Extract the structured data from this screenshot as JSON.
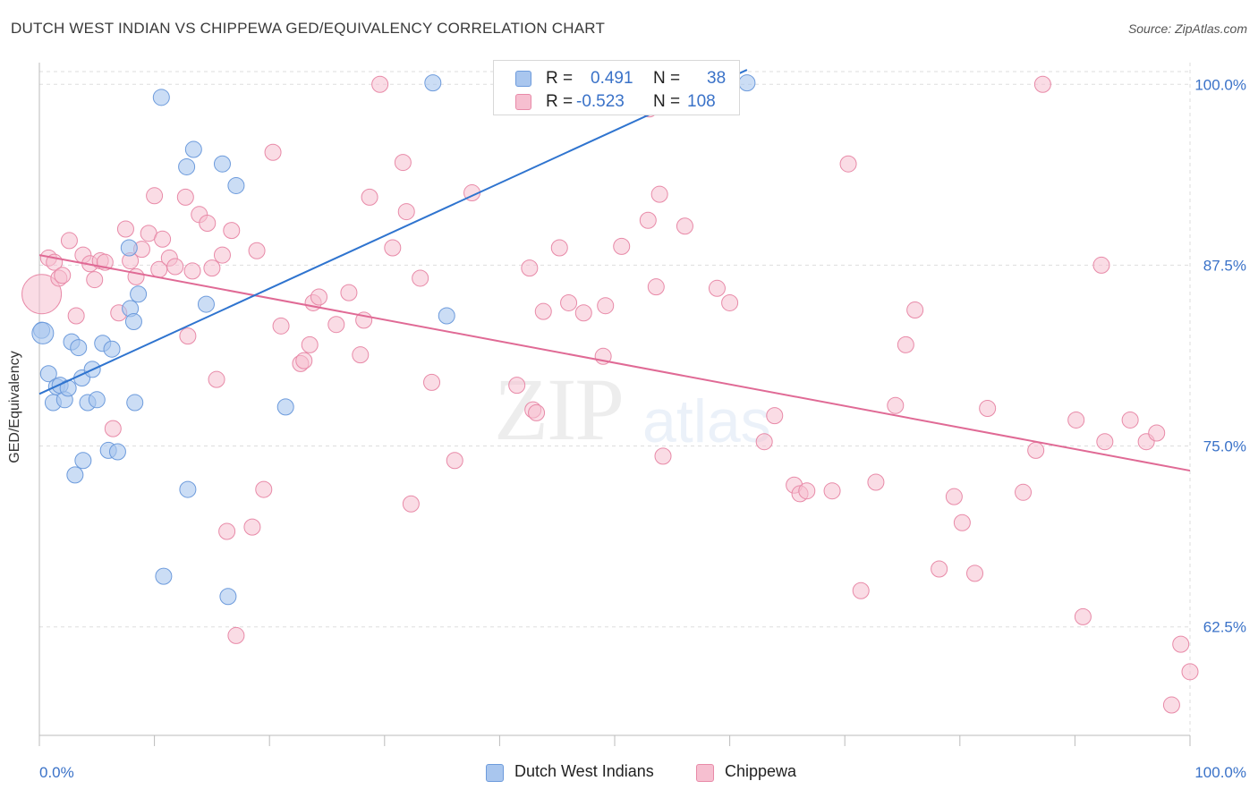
{
  "title": "DUTCH WEST INDIAN VS CHIPPEWA GED/EQUIVALENCY CORRELATION CHART",
  "source": "Source: ZipAtlas.com",
  "watermark": {
    "zip": "ZIP",
    "atlas": "atlas"
  },
  "legend": {
    "row1": {
      "r_label": "R =",
      "r_value": "0.491",
      "n_label": "N =",
      "n_value": "38"
    },
    "row2": {
      "r_label": "R =",
      "r_value": "-0.523",
      "n_label": "N =",
      "n_value": "108"
    }
  },
  "bottom_legend": {
    "blue": "Dutch West Indians",
    "pink": "Chippewa"
  },
  "colors": {
    "blue_fill": "#a9c6ee",
    "blue_stroke": "#6d9bdc",
    "blue_line": "#2f74cf",
    "pink_fill": "#f6bfd0",
    "pink_stroke": "#e88aa8",
    "pink_line": "#e06a95",
    "tick_label": "#3a72c8",
    "grid": "#dddddd"
  },
  "chart_data": {
    "type": "scatter",
    "title": "DUTCH WEST INDIAN VS CHIPPEWA GED/EQUIVALENCY CORRELATION CHART",
    "xlabel": "",
    "ylabel": "GED/Equivalency",
    "xlim": [
      0,
      100
    ],
    "ylim": [
      55.0,
      101.5
    ],
    "x_tick_labels": [
      "0.0%",
      "100.0%"
    ],
    "y_ticks": [
      62.5,
      75.0,
      87.5,
      100.0
    ],
    "y_tick_labels": [
      "62.5%",
      "75.0%",
      "87.5%",
      "100.0%"
    ],
    "grid": true,
    "legend_position": "top-center",
    "series": [
      {
        "name": "Dutch West Indians",
        "r": 0.491,
        "n": 38,
        "trend": [
          [
            0,
            78.6
          ],
          [
            61.5,
            101.0
          ]
        ],
        "points": [
          [
            0.2,
            83.0
          ],
          [
            0.8,
            80.0
          ],
          [
            1.2,
            78.0
          ],
          [
            1.5,
            79.1
          ],
          [
            1.8,
            79.2
          ],
          [
            2.2,
            78.2
          ],
          [
            2.5,
            79.0
          ],
          [
            2.8,
            82.2
          ],
          [
            3.1,
            73.0
          ],
          [
            3.4,
            81.8
          ],
          [
            3.7,
            79.7
          ],
          [
            3.8,
            74.0
          ],
          [
            4.2,
            78.0
          ],
          [
            4.6,
            80.3
          ],
          [
            5.0,
            78.2
          ],
          [
            5.5,
            82.1
          ],
          [
            6.0,
            74.7
          ],
          [
            6.3,
            81.7
          ],
          [
            6.8,
            74.6
          ],
          [
            7.8,
            88.7
          ],
          [
            7.9,
            84.5
          ],
          [
            8.2,
            83.6
          ],
          [
            8.3,
            78.0
          ],
          [
            8.6,
            85.5
          ],
          [
            10.6,
            99.1
          ],
          [
            10.8,
            66.0
          ],
          [
            12.8,
            94.3
          ],
          [
            12.9,
            72.0
          ],
          [
            13.4,
            95.5
          ],
          [
            14.5,
            84.8
          ],
          [
            15.9,
            94.5
          ],
          [
            16.4,
            64.6
          ],
          [
            17.1,
            93.0
          ],
          [
            21.4,
            77.7
          ],
          [
            34.2,
            100.1
          ],
          [
            35.4,
            84.0
          ],
          [
            61.5,
            100.1
          ],
          [
            0.3,
            82.8
          ]
        ]
      },
      {
        "name": "Chippewa",
        "r": -0.523,
        "n": 108,
        "trend": [
          [
            0,
            88.2
          ],
          [
            100,
            73.3
          ]
        ],
        "points": [
          [
            0.2,
            85.5
          ],
          [
            0.8,
            88.0
          ],
          [
            1.3,
            87.7
          ],
          [
            1.7,
            86.6
          ],
          [
            2.0,
            86.8
          ],
          [
            2.6,
            89.2
          ],
          [
            3.2,
            84.0
          ],
          [
            3.8,
            88.2
          ],
          [
            4.4,
            87.6
          ],
          [
            4.8,
            86.5
          ],
          [
            5.3,
            87.8
          ],
          [
            5.7,
            87.7
          ],
          [
            6.4,
            76.2
          ],
          [
            6.9,
            84.2
          ],
          [
            7.5,
            90.0
          ],
          [
            7.9,
            87.8
          ],
          [
            8.4,
            86.7
          ],
          [
            8.9,
            88.6
          ],
          [
            9.5,
            89.7
          ],
          [
            10.0,
            92.3
          ],
          [
            10.4,
            87.2
          ],
          [
            10.7,
            89.3
          ],
          [
            11.3,
            88.0
          ],
          [
            11.8,
            87.4
          ],
          [
            12.7,
            92.2
          ],
          [
            12.9,
            82.6
          ],
          [
            13.3,
            87.1
          ],
          [
            13.9,
            91.0
          ],
          [
            14.6,
            90.4
          ],
          [
            15.0,
            87.3
          ],
          [
            15.4,
            79.6
          ],
          [
            15.9,
            88.2
          ],
          [
            16.3,
            69.1
          ],
          [
            16.7,
            89.9
          ],
          [
            17.1,
            61.9
          ],
          [
            18.5,
            69.4
          ],
          [
            18.9,
            88.5
          ],
          [
            19.5,
            72.0
          ],
          [
            20.3,
            95.3
          ],
          [
            21.0,
            83.3
          ],
          [
            22.7,
            80.7
          ],
          [
            23.0,
            80.9
          ],
          [
            23.5,
            82.0
          ],
          [
            23.8,
            84.9
          ],
          [
            24.3,
            85.3
          ],
          [
            25.8,
            83.4
          ],
          [
            26.9,
            85.6
          ],
          [
            27.9,
            81.3
          ],
          [
            28.2,
            83.7
          ],
          [
            28.7,
            92.2
          ],
          [
            29.6,
            100.0
          ],
          [
            30.7,
            88.7
          ],
          [
            31.6,
            94.6
          ],
          [
            31.9,
            91.2
          ],
          [
            32.3,
            71.0
          ],
          [
            33.1,
            86.6
          ],
          [
            34.1,
            79.4
          ],
          [
            36.1,
            74.0
          ],
          [
            37.6,
            92.5
          ],
          [
            41.5,
            79.2
          ],
          [
            42.6,
            87.3
          ],
          [
            42.9,
            77.5
          ],
          [
            43.2,
            77.3
          ],
          [
            43.8,
            84.3
          ],
          [
            45.2,
            88.7
          ],
          [
            46.0,
            84.9
          ],
          [
            47.3,
            84.2
          ],
          [
            49.0,
            81.2
          ],
          [
            49.2,
            84.7
          ],
          [
            50.6,
            88.8
          ],
          [
            52.9,
            90.6
          ],
          [
            53.0,
            98.3
          ],
          [
            53.6,
            86.0
          ],
          [
            53.9,
            92.4
          ],
          [
            54.2,
            74.3
          ],
          [
            56.1,
            90.2
          ],
          [
            58.9,
            85.9
          ],
          [
            60.0,
            84.9
          ],
          [
            63.0,
            75.3
          ],
          [
            63.9,
            77.1
          ],
          [
            65.6,
            72.3
          ],
          [
            66.1,
            71.7
          ],
          [
            66.7,
            71.9
          ],
          [
            68.9,
            71.9
          ],
          [
            70.3,
            94.5
          ],
          [
            71.4,
            65.0
          ],
          [
            72.7,
            72.5
          ],
          [
            74.4,
            77.8
          ],
          [
            75.3,
            82.0
          ],
          [
            76.1,
            84.4
          ],
          [
            78.2,
            66.5
          ],
          [
            79.5,
            71.5
          ],
          [
            80.2,
            69.7
          ],
          [
            81.3,
            66.2
          ],
          [
            82.4,
            77.6
          ],
          [
            85.5,
            71.8
          ],
          [
            86.6,
            74.7
          ],
          [
            87.2,
            100.0
          ],
          [
            90.1,
            76.8
          ],
          [
            90.7,
            63.2
          ],
          [
            92.3,
            87.5
          ],
          [
            92.6,
            75.3
          ],
          [
            94.8,
            76.8
          ],
          [
            96.2,
            75.3
          ],
          [
            97.1,
            75.9
          ],
          [
            98.4,
            57.1
          ],
          [
            99.2,
            61.3
          ],
          [
            100.0,
            59.4
          ]
        ]
      }
    ]
  }
}
